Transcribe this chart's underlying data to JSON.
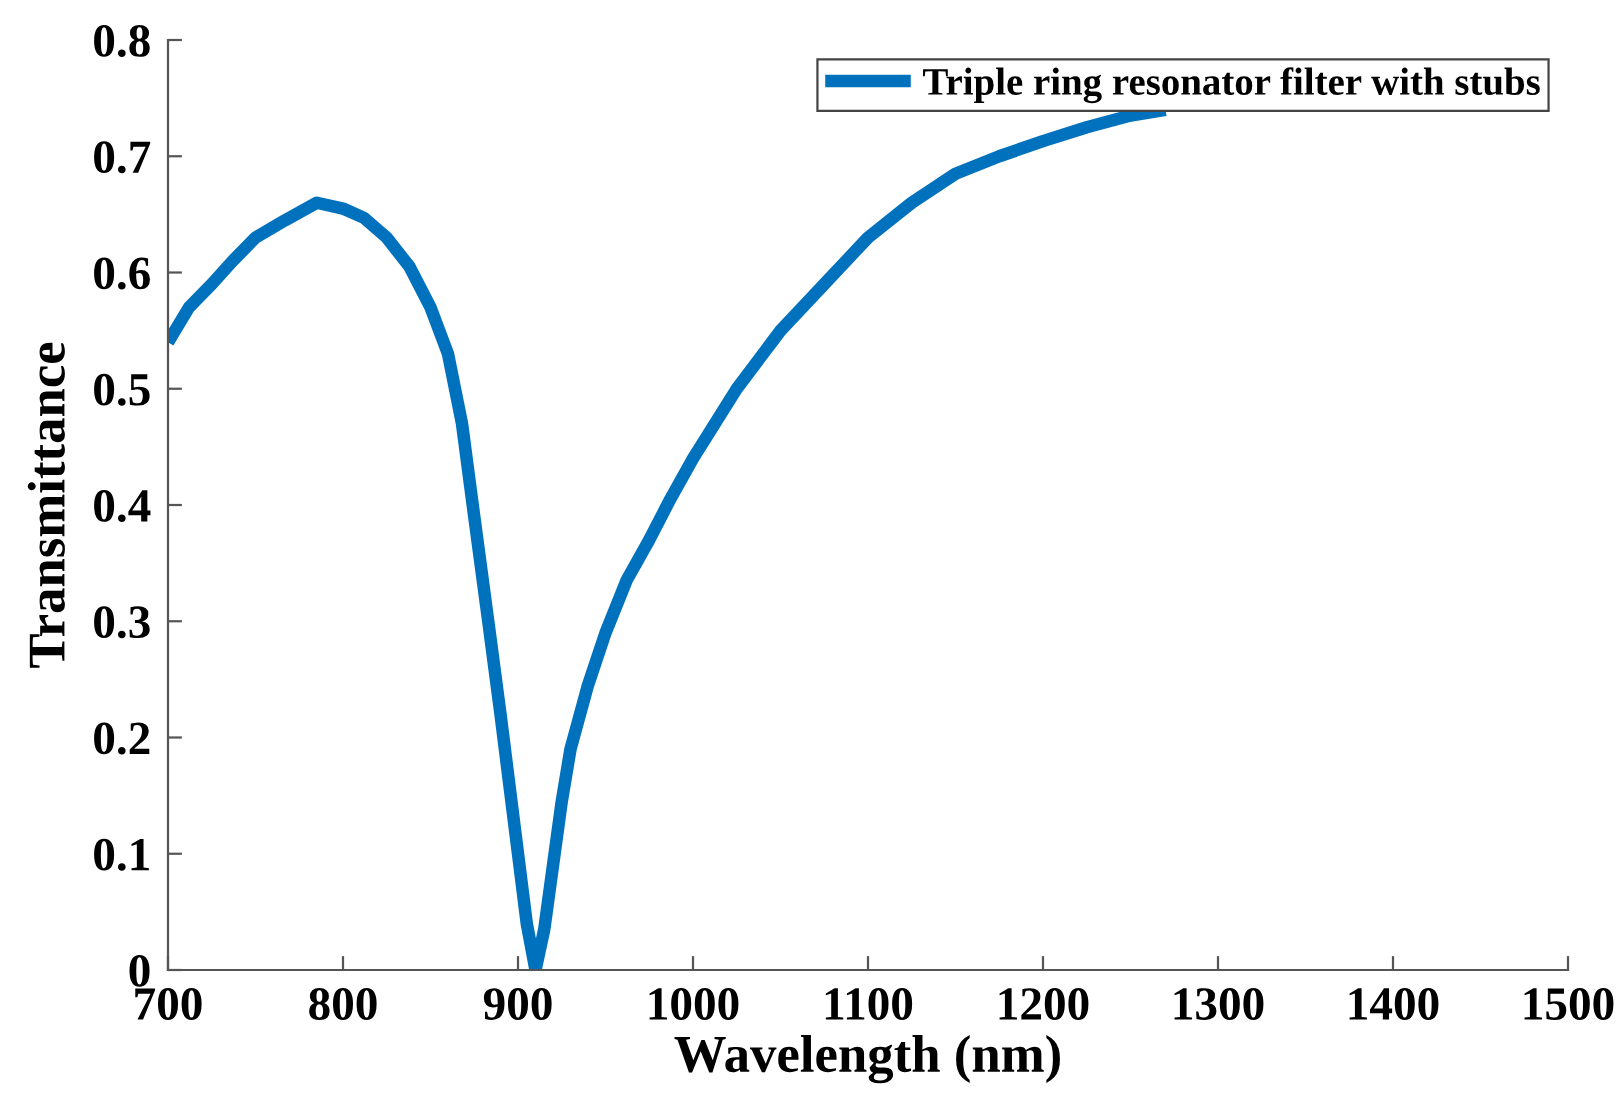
{
  "chart_data": {
    "type": "line",
    "xlabel": "Wavelength (nm)",
    "ylabel": "Transmittance",
    "xlim": [
      700,
      1500
    ],
    "xticks": [
      700,
      800,
      900,
      1000,
      1100,
      1200,
      1300,
      1400,
      1500
    ],
    "ylim": [
      0,
      0.8
    ],
    "yticks": [
      0,
      0.1,
      0.2,
      0.3,
      0.4,
      0.5,
      0.6,
      0.7,
      0.8
    ],
    "grid": false,
    "legend": "top right",
    "series": [
      {
        "name": "Triple ring resonator filter with stubs",
        "color": "#0072bd",
        "x": [
          700,
          712,
          725,
          737,
          750,
          767,
          785,
          800,
          812,
          825,
          838,
          850,
          860,
          868,
          875,
          883,
          890,
          895,
          900,
          905,
          910,
          915,
          920,
          925,
          930,
          940,
          950,
          962,
          975,
          987,
          1000,
          1025,
          1050,
          1075,
          1100,
          1125,
          1150,
          1175,
          1200,
          1225,
          1250,
          1270
        ],
        "values": [
          0.54,
          0.57,
          0.59,
          0.61,
          0.63,
          0.645,
          0.66,
          0.655,
          0.647,
          0.63,
          0.605,
          0.57,
          0.53,
          0.47,
          0.39,
          0.3,
          0.22,
          0.16,
          0.1,
          0.04,
          0.0,
          0.035,
          0.09,
          0.145,
          0.19,
          0.245,
          0.29,
          0.335,
          0.37,
          0.405,
          0.44,
          0.5,
          0.55,
          0.59,
          0.63,
          0.66,
          0.685,
          0.7,
          0.713,
          0.725,
          0.735,
          0.74
        ]
      }
    ]
  }
}
